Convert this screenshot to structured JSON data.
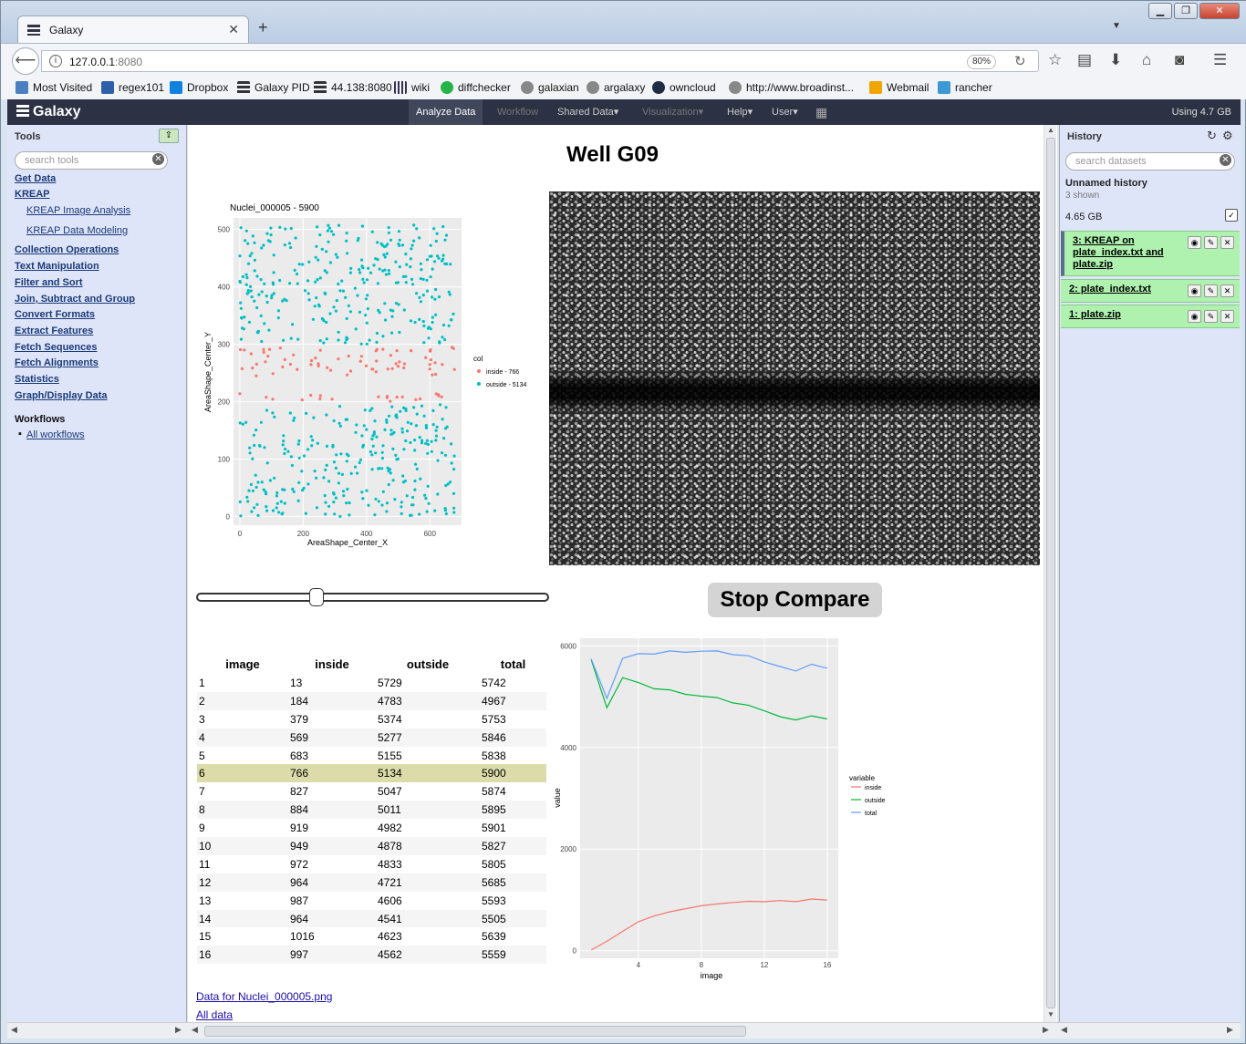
{
  "browser": {
    "tab_title": "Galaxy",
    "url_host": "127.0.0.1",
    "url_port": ":8080",
    "zoom": "80%",
    "bookmarks": [
      "Most Visited",
      "regex101",
      "Dropbox",
      "Galaxy PID",
      "44.138:8080",
      "wiki",
      "diffchecker",
      "galaxian",
      "argalaxy",
      "owncloud",
      "http://www.broadinst...",
      "Webmail",
      "rancher"
    ]
  },
  "masthead": {
    "brand": "Galaxy",
    "nav": [
      "Analyze Data",
      "Workflow",
      "Shared Data",
      "Visualization",
      "Help",
      "User"
    ],
    "quota": "Using 4.7 GB"
  },
  "tools": {
    "title": "Tools",
    "search_placeholder": "search tools",
    "sections": [
      {
        "label": "Get Data",
        "sub": []
      },
      {
        "label": "KREAP",
        "sub": [
          "KREAP Image Analysis",
          "KREAP Data Modeling"
        ]
      },
      {
        "label": "Collection Operations",
        "sub": []
      },
      {
        "label": "Text Manipulation",
        "sub": []
      },
      {
        "label": "Filter and Sort",
        "sub": []
      },
      {
        "label": "Join, Subtract and Group",
        "sub": []
      },
      {
        "label": "Convert Formats",
        "sub": []
      },
      {
        "label": "Extract Features",
        "sub": []
      },
      {
        "label": "Fetch Sequences",
        "sub": []
      },
      {
        "label": "Fetch Alignments",
        "sub": []
      },
      {
        "label": "Statistics",
        "sub": []
      },
      {
        "label": "Graph/Display Data",
        "sub": []
      }
    ],
    "workflows_title": "Workflows",
    "workflows_link": "All workflows"
  },
  "main": {
    "title": "Well G09",
    "stop_button": "Stop Compare",
    "slider_value": 0.33,
    "table": {
      "headers": [
        "image",
        "inside",
        "outside",
        "total"
      ],
      "rows": [
        [
          "1",
          "13",
          "5729",
          "5742"
        ],
        [
          "2",
          "184",
          "4783",
          "4967"
        ],
        [
          "3",
          "379",
          "5374",
          "5753"
        ],
        [
          "4",
          "569",
          "5277",
          "5846"
        ],
        [
          "5",
          "683",
          "5155",
          "5838"
        ],
        [
          "6",
          "766",
          "5134",
          "5900"
        ],
        [
          "7",
          "827",
          "5047",
          "5874"
        ],
        [
          "8",
          "884",
          "5011",
          "5895"
        ],
        [
          "9",
          "919",
          "4982",
          "5901"
        ],
        [
          "10",
          "949",
          "4878",
          "5827"
        ],
        [
          "11",
          "972",
          "4833",
          "5805"
        ],
        [
          "12",
          "964",
          "4721",
          "5685"
        ],
        [
          "13",
          "987",
          "4606",
          "5593"
        ],
        [
          "14",
          "964",
          "4541",
          "5505"
        ],
        [
          "15",
          "1016",
          "4623",
          "5639"
        ],
        [
          "16",
          "997",
          "4562",
          "5559"
        ]
      ],
      "selected_row": 5
    },
    "links": [
      "Data for Nuclei_000005.png",
      "All data"
    ]
  },
  "chart_data": [
    {
      "type": "scatter",
      "title": "Nuclei_000005 - 5900",
      "xlabel": "AreaShape_Center_X",
      "ylabel": "AreaShape_Center_Y",
      "xlim": [
        -20,
        700
      ],
      "ylim": [
        -15,
        520
      ],
      "xticks": [
        0,
        200,
        400,
        600
      ],
      "yticks": [
        0,
        100,
        200,
        300,
        400,
        500
      ],
      "legend_title": "col",
      "legend_position": "right",
      "series": [
        {
          "name": "inside - 766",
          "color": "#f8766d",
          "regions": [
            {
              "x": [
                0,
                680
              ],
              "y": [
                200,
                215
              ]
            },
            {
              "x": [
                0,
                680
              ],
              "y": [
                245,
                295
              ]
            }
          ],
          "count": 766
        },
        {
          "name": "outside - 5134",
          "color": "#00bfc4",
          "regions": [
            {
              "x": [
                0,
                680
              ],
              "y": [
                0,
                195
              ]
            },
            {
              "x": [
                0,
                680
              ],
              "y": [
                300,
                510
              ]
            }
          ],
          "count": 5134
        }
      ]
    },
    {
      "type": "line",
      "title": "",
      "xlabel": "image",
      "ylabel": "value",
      "xlim": [
        0.3,
        16.7
      ],
      "ylim": [
        -150,
        6150
      ],
      "xticks": [
        4,
        8,
        12,
        16
      ],
      "yticks": [
        0,
        2000,
        4000,
        6000
      ],
      "legend_title": "variable",
      "legend_position": "right",
      "x": [
        1,
        2,
        3,
        4,
        5,
        6,
        7,
        8,
        9,
        10,
        11,
        12,
        13,
        14,
        15,
        16
      ],
      "series": [
        {
          "name": "inside",
          "color": "#f8766d",
          "values": [
            13,
            184,
            379,
            569,
            683,
            766,
            827,
            884,
            919,
            949,
            972,
            964,
            987,
            964,
            1016,
            997
          ]
        },
        {
          "name": "outside",
          "color": "#00ba38",
          "values": [
            5729,
            4783,
            5374,
            5277,
            5155,
            5134,
            5047,
            5011,
            4982,
            4878,
            4833,
            4721,
            4606,
            4541,
            4623,
            4562
          ]
        },
        {
          "name": "total",
          "color": "#619cff",
          "values": [
            5742,
            4967,
            5753,
            5846,
            5838,
            5900,
            5874,
            5895,
            5901,
            5827,
            5805,
            5685,
            5593,
            5505,
            5639,
            5559
          ]
        }
      ]
    }
  ],
  "history": {
    "title": "History",
    "search_placeholder": "search datasets",
    "name": "Unnamed history",
    "shown": "3 shown",
    "size": "4.65 GB",
    "datasets": [
      {
        "label": "3: KREAP on plate_index.txt and plate.zip",
        "color": "#aff1af"
      },
      {
        "label": "2: plate_index.txt",
        "color": "#aff1af"
      },
      {
        "label": "1: plate.zip",
        "color": "#aff1af"
      }
    ]
  }
}
